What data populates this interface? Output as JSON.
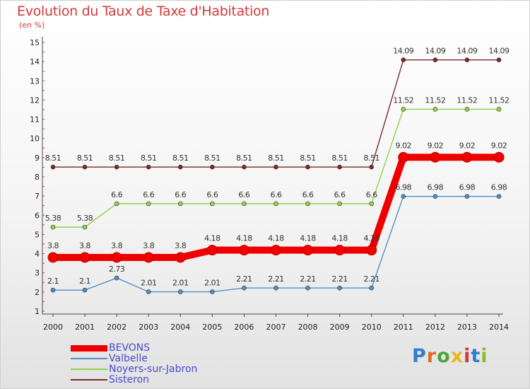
{
  "title": "Evolution du Taux de Taxe d'Habitation",
  "unit": "(en %)",
  "logo": "Proxiti",
  "chart_data": {
    "type": "line",
    "title": "Evolution du Taux de Taxe d'Habitation",
    "ylabel": "(en %)",
    "ylim": [
      1,
      15
    ],
    "yticks": [
      1,
      2,
      3,
      4,
      5,
      6,
      7,
      8,
      9,
      10,
      11,
      12,
      13,
      14,
      15
    ],
    "grid": false,
    "legend": "bottom-left",
    "x": [
      "2000",
      "2001",
      "2002",
      "2003",
      "2004",
      "2005",
      "2006",
      "2007",
      "2008",
      "2009",
      "2010",
      "2011",
      "2012",
      "2013",
      "2014"
    ],
    "series": [
      {
        "name": "BEVONS",
        "color": "#ee0000",
        "values": [
          3.8,
          3.8,
          3.8,
          3.8,
          3.8,
          4.18,
          4.18,
          4.18,
          4.18,
          4.18,
          4.18,
          9.02,
          9.02,
          9.02,
          9.02
        ],
        "labels": [
          "3.8",
          "3.8",
          "3.8",
          "3.8",
          "3.8",
          "4.18",
          "4.18",
          "4.18",
          "4.18",
          "4.18",
          "4.18",
          "9.02",
          "9.02",
          "9.02",
          "9.02"
        ]
      },
      {
        "name": "Valbelle",
        "color": "#4f8fc8",
        "values": [
          2.1,
          2.1,
          2.73,
          2.01,
          2.01,
          2.01,
          2.21,
          2.21,
          2.21,
          2.21,
          2.21,
          6.98,
          6.98,
          6.98,
          6.98
        ],
        "labels": [
          "2.1",
          "2.1",
          "2.73",
          "2.01",
          "2.01",
          "2.01",
          "2.21",
          "2.21",
          "2.21",
          "2.21",
          "2.21",
          "6.98",
          "6.98",
          "6.98",
          "6.98"
        ]
      },
      {
        "name": "Noyers-sur-Jabron",
        "color": "#8ed34a",
        "values": [
          5.38,
          5.38,
          6.6,
          6.6,
          6.6,
          6.6,
          6.6,
          6.6,
          6.6,
          6.6,
          6.6,
          11.52,
          11.52,
          11.52,
          11.52
        ],
        "labels": [
          "5.38",
          "5.38",
          "6.6",
          "6.6",
          "6.6",
          "6.6",
          "6.6",
          "6.6",
          "6.6",
          "6.6",
          "6.6",
          "11.52",
          "11.52",
          "11.52",
          "11.52"
        ]
      },
      {
        "name": "Sisteron",
        "color": "#7a2a2a",
        "values": [
          8.51,
          8.51,
          8.51,
          8.51,
          8.51,
          8.51,
          8.51,
          8.51,
          8.51,
          8.51,
          8.51,
          14.09,
          14.09,
          14.09,
          14.09
        ],
        "labels": [
          "8.51",
          "8.51",
          "8.51",
          "8.51",
          "8.51",
          "8.51",
          "8.51",
          "8.51",
          "8.51",
          "8.51",
          "8.51",
          "14.09",
          "14.09",
          "14.09",
          "14.09"
        ]
      }
    ]
  }
}
